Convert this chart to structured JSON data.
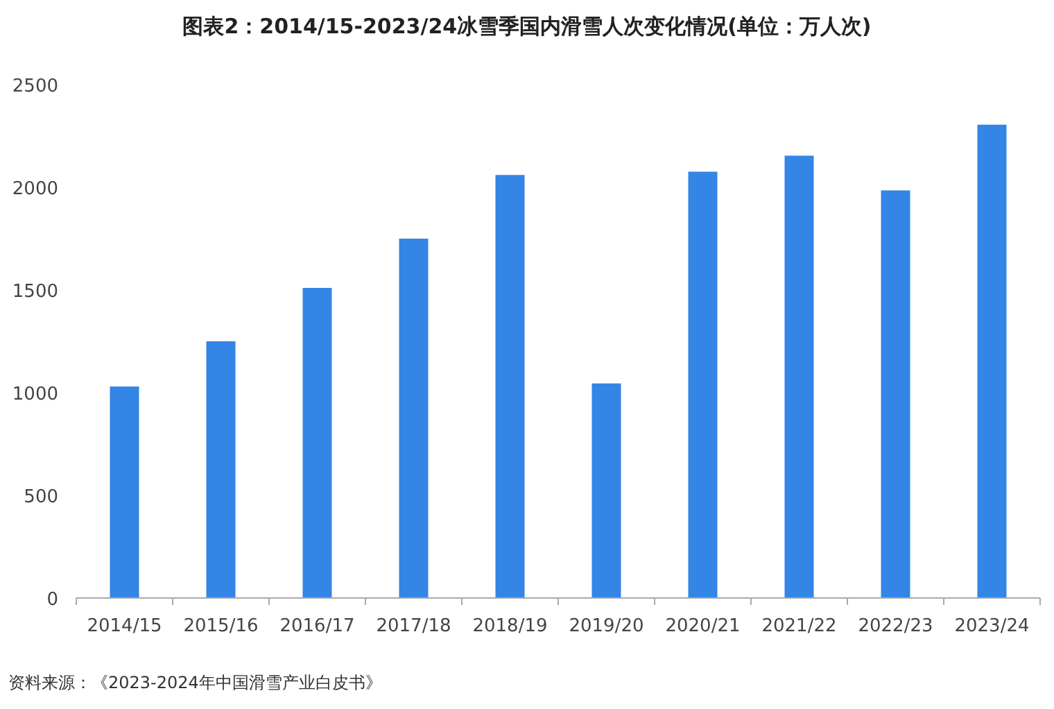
{
  "chart_data": {
    "type": "bar",
    "title": "图表2：2014/15-2023/24冰雪季国内滑雪人次变化情况(单位：万人次)",
    "categories": [
      "2014/15",
      "2015/16",
      "2016/17",
      "2017/18",
      "2018/19",
      "2019/20",
      "2020/21",
      "2021/22",
      "2022/23",
      "2023/24"
    ],
    "values": [
      1030,
      1250,
      1510,
      1750,
      2060,
      1045,
      2076,
      2154,
      1985,
      2305
    ],
    "color": "#3385e6",
    "ylim": [
      0,
      2500
    ],
    "yticks": [
      0,
      500,
      1000,
      1500,
      2000,
      2500
    ],
    "annotations": [
      "资料来源：《2023-2024年中国滑雪产业白皮书》"
    ]
  }
}
